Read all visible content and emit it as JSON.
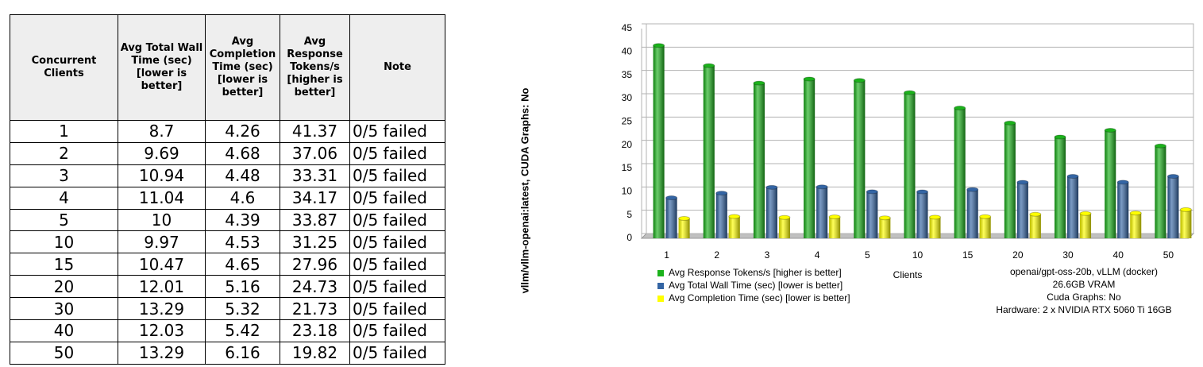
{
  "table": {
    "headers": [
      "Concurrent Clients",
      "Avg Total Wall Time (sec) [lower is better]",
      "Avg Completion Time (sec) [lower is better]",
      "Avg Response Tokens/s [higher is better]",
      "Note"
    ],
    "rows": [
      [
        "1",
        "8.7",
        "4.26",
        "41.37",
        "0/5 failed"
      ],
      [
        "2",
        "9.69",
        "4.68",
        "37.06",
        "0/5 failed"
      ],
      [
        "3",
        "10.94",
        "4.48",
        "33.31",
        "0/5 failed"
      ],
      [
        "4",
        "11.04",
        "4.6",
        "34.17",
        "0/5 failed"
      ],
      [
        "5",
        "10",
        "4.39",
        "33.87",
        "0/5 failed"
      ],
      [
        "10",
        "9.97",
        "4.53",
        "31.25",
        "0/5 failed"
      ],
      [
        "15",
        "10.47",
        "4.65",
        "27.96",
        "0/5 failed"
      ],
      [
        "20",
        "12.01",
        "5.16",
        "24.73",
        "0/5 failed"
      ],
      [
        "30",
        "13.29",
        "5.32",
        "21.73",
        "0/5 failed"
      ],
      [
        "40",
        "12.03",
        "5.42",
        "23.18",
        "0/5 failed"
      ],
      [
        "50",
        "13.29",
        "6.16",
        "19.82",
        "0/5 failed"
      ]
    ]
  },
  "side_label": "vllm/vllm-openai:latest, CUDA Graphs: No",
  "chart_data": {
    "type": "bar",
    "xlabel": "Clients",
    "categories": [
      "1",
      "2",
      "3",
      "4",
      "5",
      "10",
      "15",
      "20",
      "30",
      "40",
      "50"
    ],
    "series": [
      {
        "name": "Avg Response Tokens/s [higher is better]",
        "color": "#1bb21b",
        "values": [
          41.37,
          37.06,
          33.31,
          34.17,
          33.87,
          31.25,
          27.96,
          24.73,
          21.73,
          23.18,
          19.82
        ]
      },
      {
        "name": "Avg Total Wall Time (sec) [lower is better]",
        "color": "#3465a4",
        "values": [
          8.7,
          9.69,
          10.94,
          11.04,
          10,
          9.97,
          10.47,
          12.01,
          13.29,
          12.03,
          13.29
        ]
      },
      {
        "name": "Avg Completion Time (sec) [lower is better]",
        "color": "#ffff00",
        "values": [
          4.26,
          4.68,
          4.48,
          4.6,
          4.39,
          4.53,
          4.65,
          5.16,
          5.32,
          5.42,
          6.16
        ]
      }
    ],
    "ylim": [
      0,
      45
    ],
    "yticks": [
      0,
      5,
      10,
      15,
      20,
      25,
      30,
      35,
      40,
      45
    ],
    "grid": true,
    "annotations": [
      "openai/gpt-oss-20b, vLLM (docker)",
      "26.6GB VRAM",
      "Cuda Graphs: No",
      "Hardware: 2 x NVIDIA RTX 5060 Ti 16GB"
    ]
  }
}
